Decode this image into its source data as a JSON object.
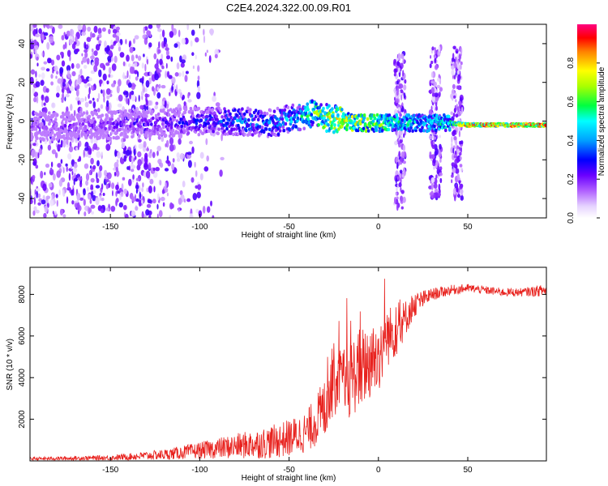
{
  "figure_title": "C2E4.2024.322.00.09.R01",
  "chart_data": [
    {
      "type": "heatmap",
      "title": "C2E4.2024.322.00.09.R01",
      "xlabel": "Height of straight line (km)",
      "ylabel": "Frequency (Hz)",
      "xlim": [
        -195,
        94
      ],
      "ylim": [
        -50,
        50
      ],
      "xticks": [
        -150,
        -100,
        -50,
        0,
        50
      ],
      "yticks": [
        -40,
        -20,
        0,
        20,
        40
      ],
      "colorbar": {
        "label": "Normalized spectral amplitude",
        "range": [
          0,
          1
        ],
        "ticks": [
          0.0,
          0.2,
          0.4,
          0.6,
          0.8
        ],
        "tick_labels": [
          "0.0",
          "0.2",
          "0.4",
          "0.6",
          "0.8"
        ],
        "colormap": [
          "#e8d8ff",
          "#8a2be2",
          "#0000ff",
          "#00bfff",
          "#00ffff",
          "#00ff00",
          "#ffff00",
          "#ff8000",
          "#ff0000",
          "#ff00a0"
        ]
      },
      "noise_band": {
        "x_range": [
          -195,
          -100
        ],
        "y_range": [
          -50,
          50
        ],
        "typical_amplitude": 0.15
      },
      "signal_track": {
        "x": [
          -195,
          -150,
          -120,
          -100,
          -80,
          -60,
          -50,
          -40,
          -35,
          -30,
          -25,
          -20,
          -10,
          0,
          10,
          20,
          30,
          40,
          50,
          60,
          70,
          80,
          94
        ],
        "freq_hz": [
          -3,
          -2,
          -1,
          0,
          0,
          -1,
          1,
          3,
          4,
          2,
          1,
          0,
          -1,
          -1,
          -1,
          -1,
          -1,
          -1,
          -2,
          -2,
          -2,
          -2,
          -2
        ],
        "amplitude": [
          0.2,
          0.25,
          0.3,
          0.35,
          0.45,
          0.45,
          0.5,
          0.6,
          0.7,
          0.8,
          0.85,
          0.85,
          0.8,
          0.7,
          0.6,
          0.55,
          0.55,
          0.6,
          0.95,
          0.95,
          0.95,
          0.95,
          0.95
        ]
      },
      "vertical_bursts": [
        {
          "x": 12,
          "y_range": [
            -45,
            35
          ]
        },
        {
          "x": 32,
          "y_range": [
            -40,
            38
          ]
        },
        {
          "x": 44,
          "y_range": [
            -40,
            38
          ]
        }
      ]
    },
    {
      "type": "line",
      "xlabel": "Height of straight line (km)",
      "ylabel": "SNR (10 * v/v)",
      "xlim": [
        -195,
        94
      ],
      "ylim": [
        0,
        9300
      ],
      "xticks": [
        -150,
        -100,
        -50,
        0,
        50
      ],
      "yticks": [
        2000,
        4000,
        6000,
        8000
      ],
      "line_color": "#e8221e",
      "series_trend": {
        "x": [
          -195,
          -150,
          -120,
          -100,
          -80,
          -60,
          -50,
          -40,
          -30,
          -25,
          -20,
          -10,
          0,
          5,
          10,
          20,
          30,
          40,
          50,
          60,
          70,
          80,
          94
        ],
        "snr": [
          100,
          150,
          300,
          500,
          700,
          900,
          1100,
          1400,
          2500,
          4000,
          3500,
          4500,
          5000,
          6000,
          6200,
          7500,
          8000,
          8200,
          8300,
          8200,
          8100,
          8100,
          8200
        ],
        "noise_spread": [
          80,
          120,
          250,
          400,
          600,
          800,
          900,
          1000,
          1500,
          1800,
          1800,
          2000,
          1800,
          1500,
          1200,
          600,
          300,
          250,
          200,
          200,
          200,
          200,
          300
        ]
      }
    }
  ]
}
